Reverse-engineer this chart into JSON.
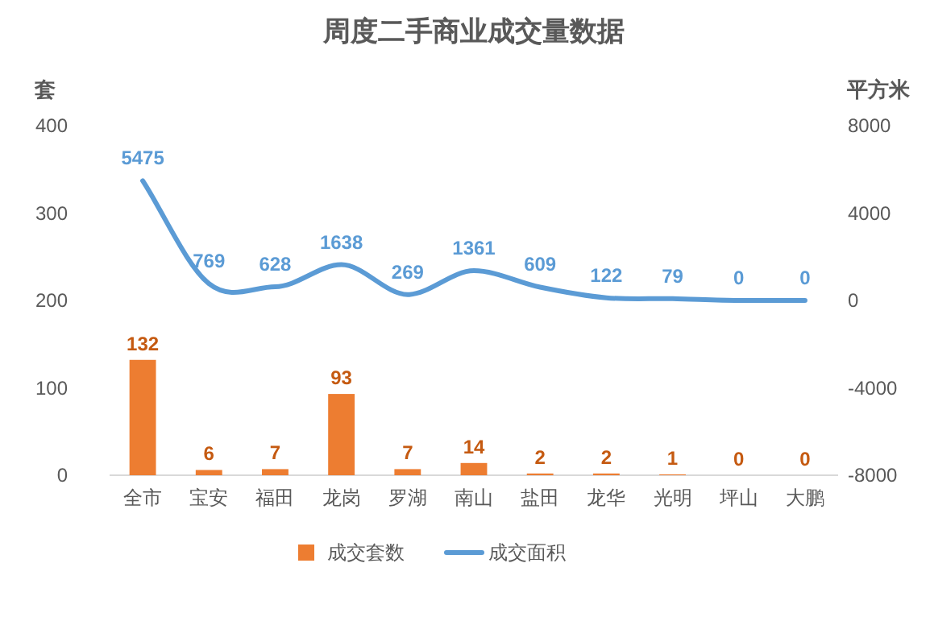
{
  "chart_data": {
    "type": "bar",
    "title": "周度二手商业成交量数据",
    "ylabel": "套",
    "y2label": "平方米",
    "categories": [
      "全市",
      "宝安",
      "福田",
      "龙岗",
      "罗湖",
      "南山",
      "盐田",
      "龙华",
      "光明",
      "坪山",
      "大鹏"
    ],
    "series": [
      {
        "name": "成交套数",
        "color": "#ed7d31",
        "values": [
          132,
          6,
          7,
          93,
          7,
          14,
          2,
          2,
          1,
          0,
          0
        ]
      },
      {
        "name": "成交面积",
        "type": "line",
        "axis": "y2",
        "color": "#5b9bd5",
        "values": [
          5475,
          769,
          628,
          1638,
          269,
          1361,
          609,
          122,
          79,
          0,
          0
        ]
      }
    ],
    "ylim": [
      0,
      400
    ],
    "yticks": [
      0,
      100,
      200,
      300,
      400
    ],
    "y2lim": [
      -8000,
      8000
    ],
    "y2ticks": [
      -8000,
      -4000,
      0,
      4000,
      8000
    ],
    "data_labels": true,
    "legend": "bottom",
    "marker": "none"
  }
}
